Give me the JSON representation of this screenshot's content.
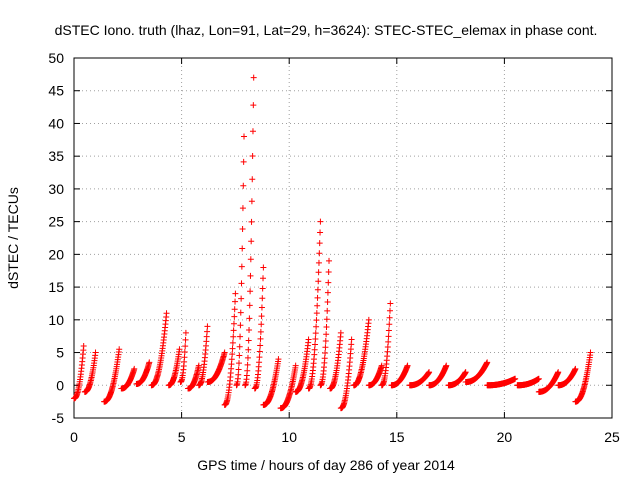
{
  "chart_data": {
    "type": "scatter",
    "title": "dSTEC Iono. truth (lhaz, Lon=91, Lat=29, h=3624): STEC-STEC_elemax in phase cont.",
    "xlabel": "GPS time / hours of day 286 of year 2014",
    "ylabel": "dSTEC  / TECUs",
    "xlim": [
      0,
      25
    ],
    "ylim": [
      -5,
      50
    ],
    "xticks": [
      0,
      5,
      10,
      15,
      20,
      25
    ],
    "yticks": [
      -5,
      0,
      5,
      10,
      15,
      20,
      25,
      30,
      35,
      40,
      45,
      50
    ],
    "grid": true,
    "marker": "+",
    "color": "#ff0000",
    "series": [
      {
        "arcs": [
          {
            "t0": 0.0,
            "t1": 0.45,
            "y0": -2.0,
            "y1": 6.0
          },
          {
            "t0": 0.5,
            "t1": 1.0,
            "y0": -1.0,
            "y1": 5.0
          },
          {
            "t0": 1.4,
            "t1": 2.1,
            "y0": -2.5,
            "y1": 5.5
          },
          {
            "t0": 2.2,
            "t1": 2.8,
            "y0": -0.5,
            "y1": 2.5
          },
          {
            "t0": 2.9,
            "t1": 3.5,
            "y0": 0.2,
            "y1": 3.5
          },
          {
            "t0": 3.6,
            "t1": 4.3,
            "y0": 0.0,
            "y1": 11.0
          },
          {
            "t0": 4.4,
            "t1": 4.9,
            "y0": 0.0,
            "y1": 5.5
          },
          {
            "t0": 4.95,
            "t1": 5.2,
            "y0": 0.5,
            "y1": 8.0
          },
          {
            "t0": 5.3,
            "t1": 5.8,
            "y0": -0.5,
            "y1": 3.0
          },
          {
            "t0": 5.8,
            "t1": 6.2,
            "y0": 0.0,
            "y1": 9.0
          },
          {
            "t0": 6.2,
            "t1": 7.0,
            "y0": 0.5,
            "y1": 5.0
          },
          {
            "t0": 7.0,
            "t1": 7.5,
            "y0": -3.0,
            "y1": 14.0
          },
          {
            "t0": 7.55,
            "t1": 7.9,
            "y0": 0.0,
            "y1": 38.0
          },
          {
            "t0": 7.95,
            "t1": 8.35,
            "y0": 0.0,
            "y1": 47.0
          },
          {
            "t0": 8.4,
            "t1": 8.8,
            "y0": -0.5,
            "y1": 18.0
          },
          {
            "t0": 8.8,
            "t1": 9.5,
            "y0": -3.0,
            "y1": 4.0
          },
          {
            "t0": 9.6,
            "t1": 10.3,
            "y0": -3.5,
            "y1": 3.0
          },
          {
            "t0": 10.3,
            "t1": 10.9,
            "y0": -1.0,
            "y1": 7.0
          },
          {
            "t0": 10.9,
            "t1": 11.45,
            "y0": -0.5,
            "y1": 25.0
          },
          {
            "t0": 11.45,
            "t1": 11.85,
            "y0": 0.0,
            "y1": 19.0
          },
          {
            "t0": 11.9,
            "t1": 12.4,
            "y0": -0.5,
            "y1": 8.0
          },
          {
            "t0": 12.4,
            "t1": 12.9,
            "y0": -3.5,
            "y1": 7.0
          },
          {
            "t0": 13.0,
            "t1": 13.7,
            "y0": 0.0,
            "y1": 10.0
          },
          {
            "t0": 13.7,
            "t1": 14.3,
            "y0": 0.0,
            "y1": 3.0
          },
          {
            "t0": 14.3,
            "t1": 14.7,
            "y0": 0.0,
            "y1": 12.5
          },
          {
            "t0": 14.75,
            "t1": 15.5,
            "y0": 0.0,
            "y1": 3.0
          },
          {
            "t0": 15.6,
            "t1": 16.5,
            "y0": 0.0,
            "y1": 2.0
          },
          {
            "t0": 16.5,
            "t1": 17.3,
            "y0": 0.0,
            "y1": 3.0
          },
          {
            "t0": 17.4,
            "t1": 18.2,
            "y0": 0.0,
            "y1": 2.0
          },
          {
            "t0": 18.2,
            "t1": 19.2,
            "y0": 0.5,
            "y1": 3.5
          },
          {
            "t0": 19.2,
            "t1": 20.5,
            "y0": 0.0,
            "y1": 1.0
          },
          {
            "t0": 20.6,
            "t1": 21.6,
            "y0": 0.0,
            "y1": 1.0
          },
          {
            "t0": 21.6,
            "t1": 22.5,
            "y0": -1.0,
            "y1": 2.0
          },
          {
            "t0": 22.5,
            "t1": 23.3,
            "y0": 0.0,
            "y1": 2.5
          },
          {
            "t0": 23.3,
            "t1": 24.0,
            "y0": -2.5,
            "y1": 5.0
          }
        ]
      }
    ]
  }
}
